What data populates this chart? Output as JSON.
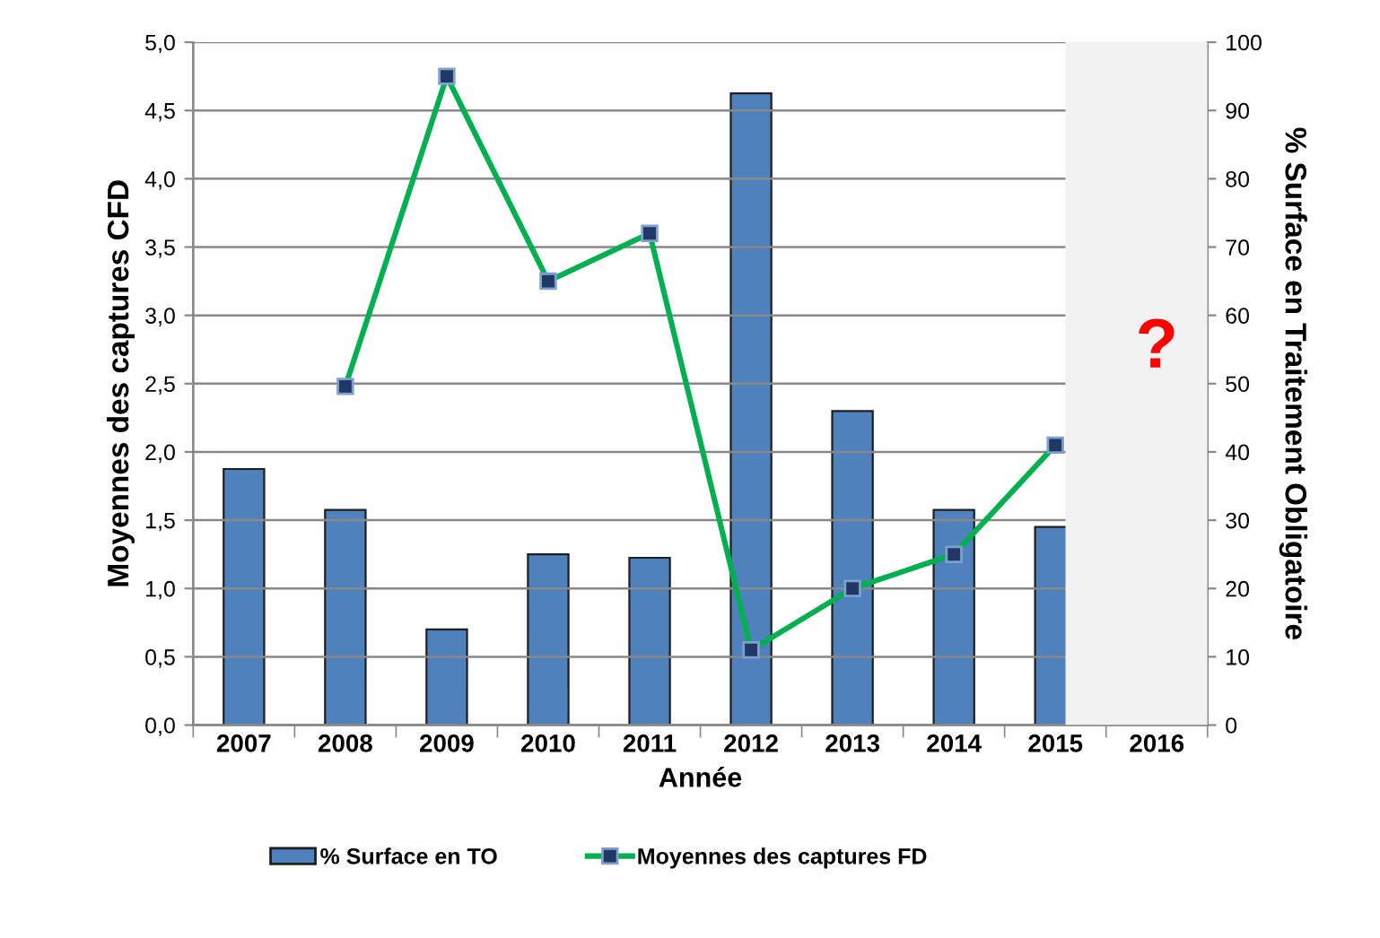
{
  "chart_data": {
    "type": "bar",
    "xlabel": "Année",
    "ylabel": "Moyennes des captures CFD",
    "y2label": "% Surface en Traitement Obligatoire",
    "categories": [
      "2007",
      "2008",
      "2009",
      "2010",
      "2011",
      "2012",
      "2013",
      "2014",
      "2015",
      "2016"
    ],
    "series": [
      {
        "name": "% Surface en TO",
        "axis": "y2",
        "color": "#4f81bd",
        "values": [
          37.5,
          31.5,
          14,
          25,
          24.5,
          92.5,
          46,
          31.5,
          29,
          null
        ]
      },
      {
        "name": "Moyennes des captures FD",
        "type": "line",
        "axis": "y",
        "color": "#00b050",
        "marker": "square",
        "values": [
          null,
          2.48,
          4.75,
          3.25,
          3.6,
          0.55,
          1.0,
          1.25,
          2.05,
          null
        ]
      }
    ],
    "ylim": [
      0,
      5
    ],
    "yticks": [
      {
        "value": 0,
        "label": "0,0"
      },
      {
        "value": 0.5,
        "label": "0,5"
      },
      {
        "value": 1,
        "label": "1,0"
      },
      {
        "value": 1.5,
        "label": "1,5"
      },
      {
        "value": 2,
        "label": "2,0"
      },
      {
        "value": 2.5,
        "label": "2,5"
      },
      {
        "value": 3,
        "label": "3,0"
      },
      {
        "value": 3.5,
        "label": "3,5"
      },
      {
        "value": 4,
        "label": "4,0"
      },
      {
        "value": 4.5,
        "label": "4,5"
      },
      {
        "value": 5,
        "label": "5,0"
      }
    ],
    "y2lim": [
      0,
      100
    ],
    "y2ticks": [
      0,
      10,
      20,
      30,
      40,
      50,
      60,
      70,
      80,
      90,
      100
    ],
    "annotations": [
      "?"
    ],
    "grid": "y",
    "legend": "bottom"
  }
}
